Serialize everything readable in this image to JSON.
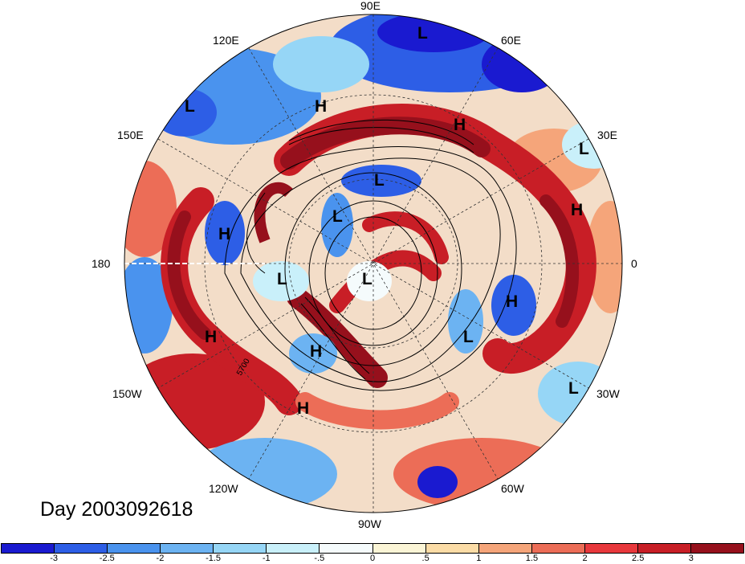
{
  "title": "Day 2003092618",
  "longitude_labels": {
    "lon_90e": "90E",
    "lon_120e": "120E",
    "lon_60e": "60E",
    "lon_150e": "150E",
    "lon_30e": "30E",
    "lon_180": "180",
    "lon_0": "0",
    "lon_150w": "150W",
    "lon_30w": "30W",
    "lon_120w": "120W",
    "lon_60w": "60W",
    "lon_90w": "90W"
  },
  "pressure_centers": [
    {
      "id": "l1",
      "letter": "L"
    },
    {
      "id": "l2",
      "letter": "L"
    },
    {
      "id": "h1",
      "letter": "H"
    },
    {
      "id": "h2",
      "letter": "H"
    },
    {
      "id": "l3",
      "letter": "L"
    },
    {
      "id": "l4",
      "letter": "L"
    },
    {
      "id": "h3",
      "letter": "H"
    },
    {
      "id": "h4",
      "letter": "H"
    },
    {
      "id": "l5",
      "letter": "L"
    },
    {
      "id": "l6",
      "letter": "L"
    },
    {
      "id": "l7",
      "letter": "L"
    },
    {
      "id": "h5",
      "letter": "H"
    },
    {
      "id": "l8",
      "letter": "L"
    },
    {
      "id": "h6",
      "letter": "H"
    },
    {
      "id": "h7",
      "letter": "H"
    },
    {
      "id": "l9",
      "letter": "L"
    },
    {
      "id": "h8",
      "letter": "H"
    }
  ],
  "contour_label": "5700",
  "colorbar": {
    "colors": [
      "#1a1ad0",
      "#2d5ee6",
      "#4a93ee",
      "#6cb3f2",
      "#96d6f6",
      "#c9f0fa",
      "#f5fbfc",
      "#fbf5d6",
      "#fbdca6",
      "#f5a57a",
      "#ec6d57",
      "#e8383c",
      "#c81e26",
      "#96101c"
    ],
    "tick_labels": [
      "-3",
      "-2.5",
      "-2",
      "-1.5",
      "-1",
      "-.5",
      "0",
      ".5",
      "1",
      "1.5",
      "2",
      "2.5",
      "3"
    ]
  }
}
